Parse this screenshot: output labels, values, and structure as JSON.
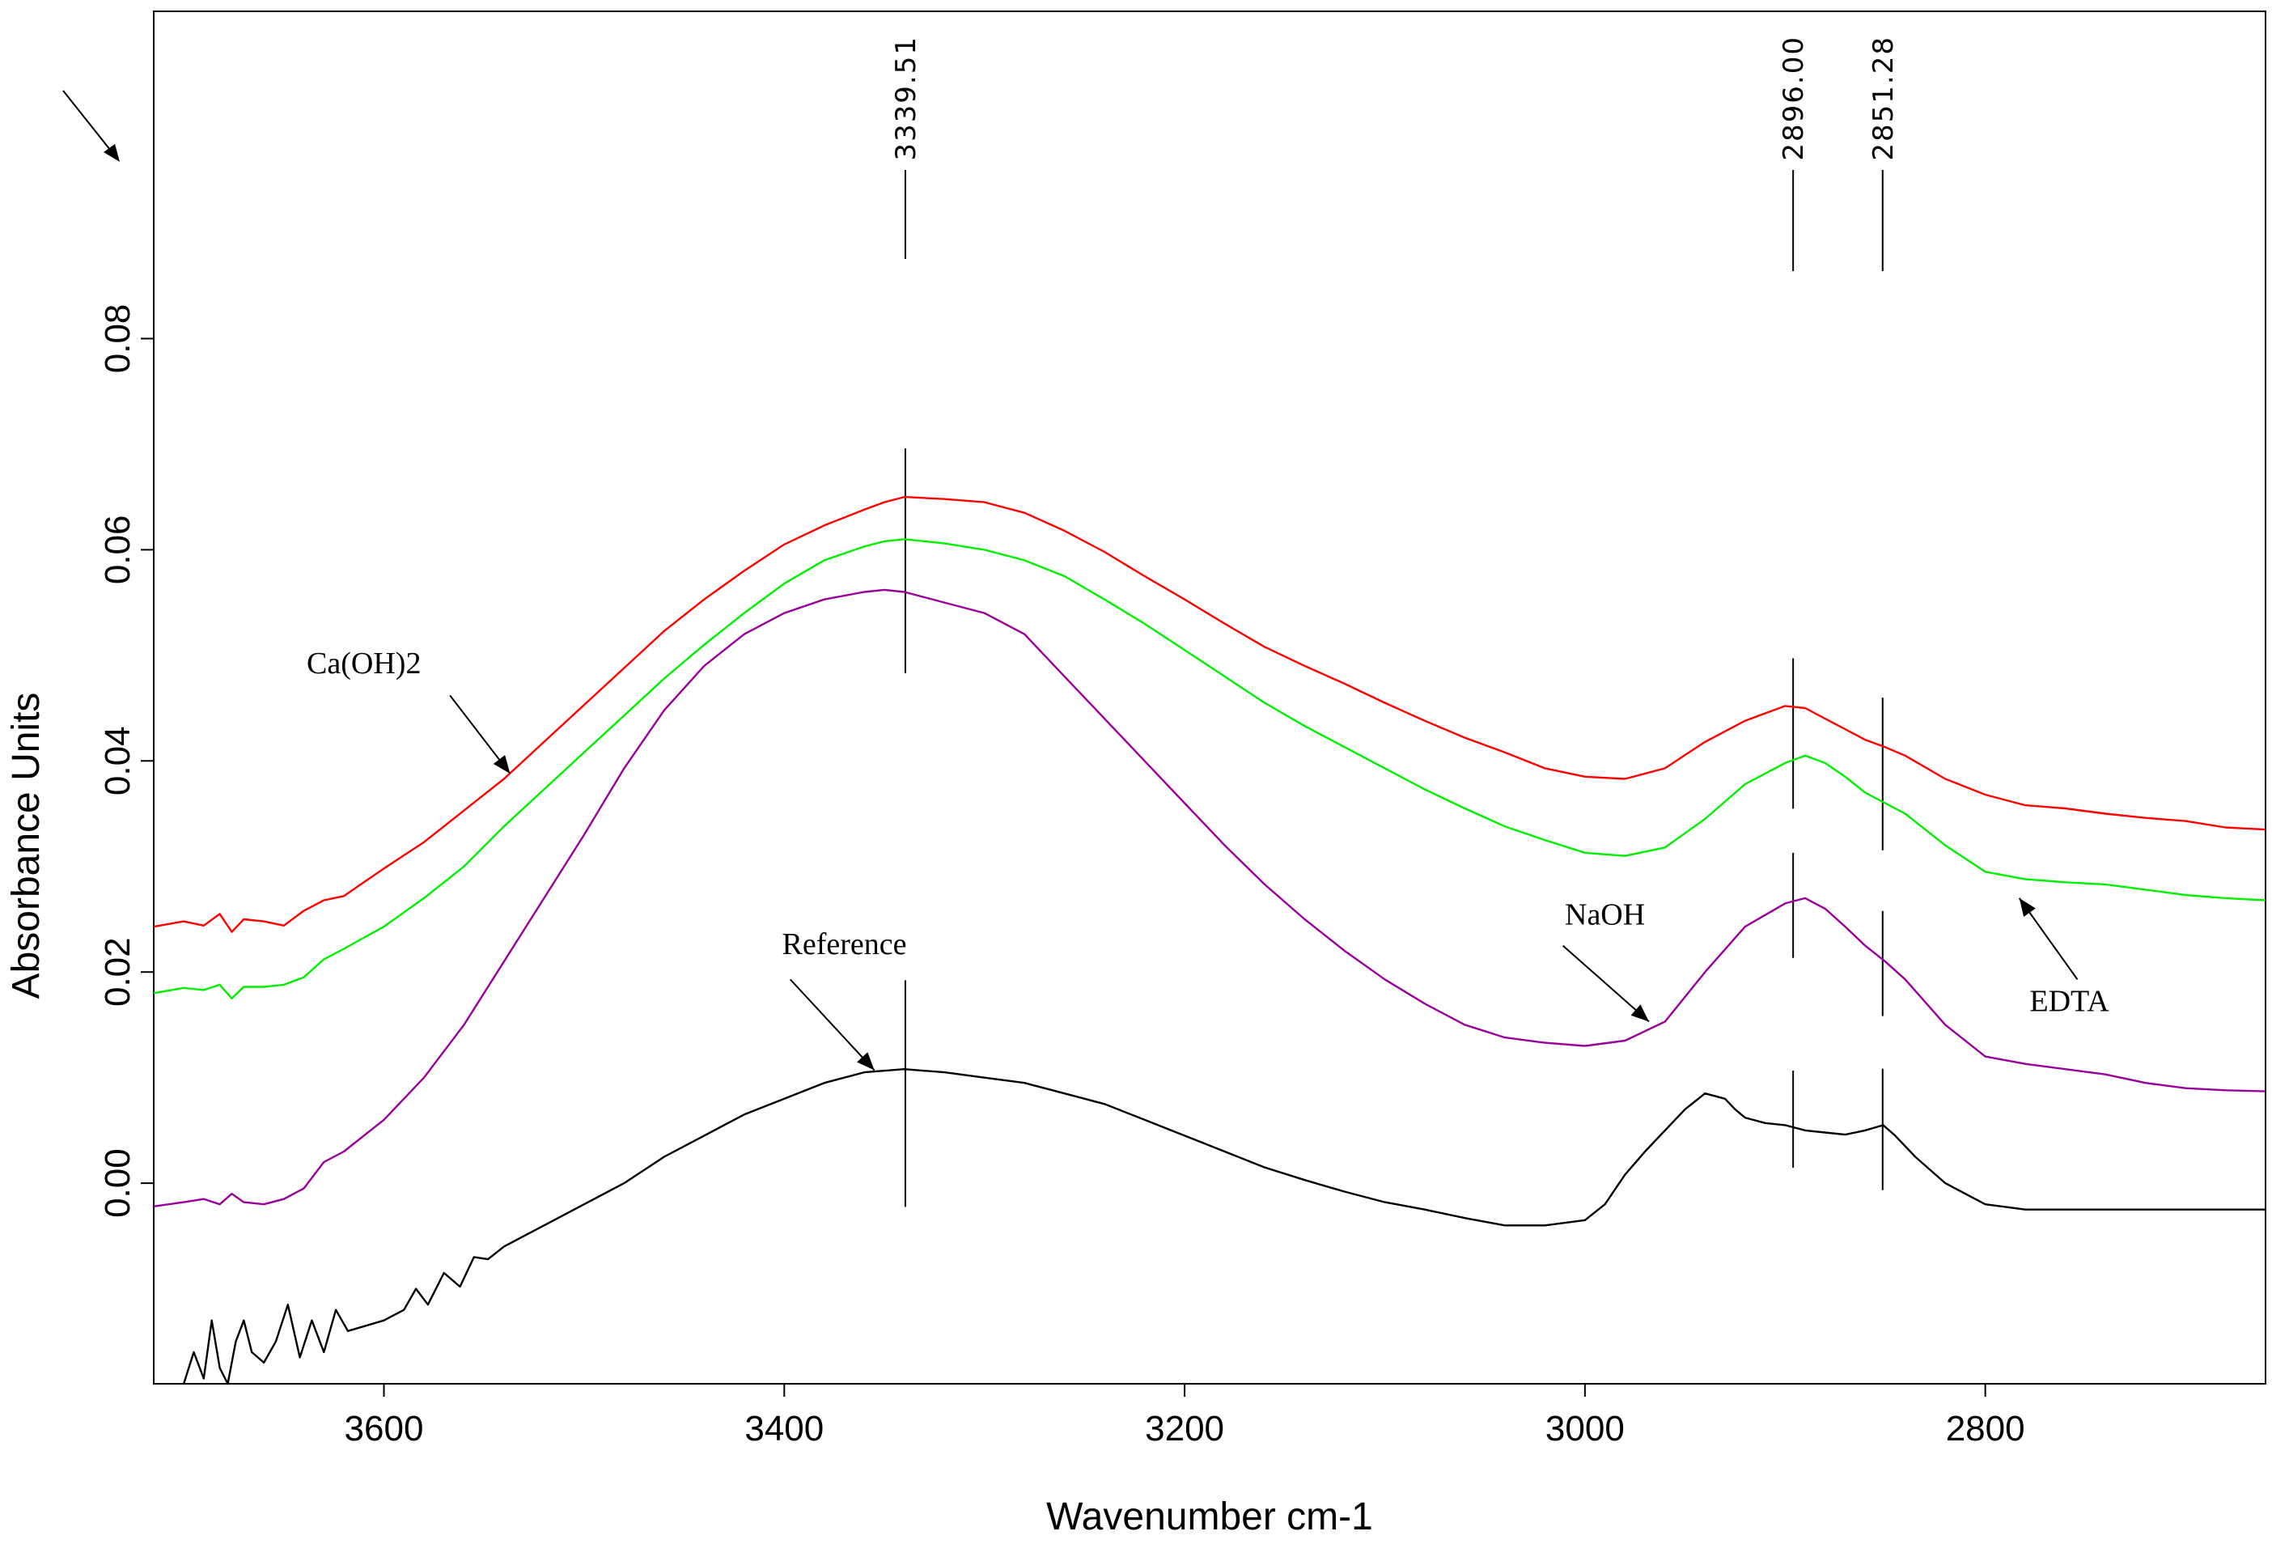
{
  "chart_data": {
    "type": "line",
    "title": "",
    "xlabel": "Wavenumber cm-1",
    "ylabel": "Absorbance Units",
    "xlim": [
      3715,
      2660
    ],
    "ylim": [
      -0.019,
      0.111
    ],
    "x_ticks": [
      3600,
      3400,
      3200,
      3000,
      2800
    ],
    "x_tick_labels": [
      "3600",
      "3400",
      "3200",
      "3000",
      "2800"
    ],
    "y_ticks": [
      0.0,
      0.02,
      0.04,
      0.06,
      0.08
    ],
    "y_tick_labels": [
      "0.00",
      "0.02",
      "0.04",
      "0.06",
      "0.08"
    ],
    "grid": false,
    "legend": "none",
    "peak_markers": [
      {
        "x": 3339.51,
        "label": "3339.51"
      },
      {
        "x": 2896.0,
        "label": "2896.00"
      },
      {
        "x": 2851.28,
        "label": "2851.28"
      }
    ],
    "series": [
      {
        "name": "Ca(OH)2",
        "color": "#ff0000",
        "x": [
          3715,
          3700,
          3690,
          3682,
          3676,
          3670,
          3660,
          3650,
          3640,
          3630,
          3620,
          3600,
          3580,
          3560,
          3540,
          3520,
          3500,
          3480,
          3460,
          3440,
          3420,
          3400,
          3380,
          3360,
          3350,
          3340,
          3320,
          3300,
          3280,
          3260,
          3240,
          3220,
          3200,
          3180,
          3160,
          3140,
          3120,
          3100,
          3080,
          3060,
          3040,
          3020,
          3000,
          2980,
          2960,
          2940,
          2920,
          2900,
          2890,
          2880,
          2870,
          2860,
          2850,
          2840,
          2820,
          2800,
          2780,
          2760,
          2740,
          2720,
          2700,
          2680,
          2660
        ],
        "y": [
          0.0243,
          0.0248,
          0.0244,
          0.0255,
          0.0238,
          0.025,
          0.0248,
          0.0244,
          0.0258,
          0.0268,
          0.0272,
          0.0298,
          0.0323,
          0.0353,
          0.0383,
          0.0418,
          0.0453,
          0.0488,
          0.0523,
          0.0553,
          0.058,
          0.0605,
          0.0623,
          0.0638,
          0.0645,
          0.065,
          0.0648,
          0.0645,
          0.0635,
          0.0618,
          0.0598,
          0.0575,
          0.0553,
          0.053,
          0.0508,
          0.049,
          0.0473,
          0.0455,
          0.0438,
          0.0422,
          0.0408,
          0.0393,
          0.0385,
          0.0383,
          0.0393,
          0.0418,
          0.0438,
          0.0452,
          0.045,
          0.044,
          0.043,
          0.042,
          0.0413,
          0.0405,
          0.0383,
          0.0368,
          0.0358,
          0.0355,
          0.035,
          0.0346,
          0.0343,
          0.0337,
          0.0335
        ]
      },
      {
        "name": "EDTA",
        "color": "#00ee00",
        "x": [
          3715,
          3700,
          3690,
          3682,
          3676,
          3670,
          3660,
          3650,
          3640,
          3630,
          3620,
          3600,
          3580,
          3560,
          3540,
          3520,
          3500,
          3480,
          3460,
          3440,
          3420,
          3400,
          3380,
          3360,
          3350,
          3340,
          3320,
          3300,
          3280,
          3260,
          3240,
          3220,
          3200,
          3180,
          3160,
          3140,
          3120,
          3100,
          3080,
          3060,
          3040,
          3020,
          3000,
          2980,
          2960,
          2940,
          2920,
          2900,
          2890,
          2880,
          2870,
          2860,
          2850,
          2840,
          2820,
          2800,
          2780,
          2760,
          2740,
          2720,
          2700,
          2680,
          2660
        ],
        "y": [
          0.018,
          0.0185,
          0.0183,
          0.0188,
          0.0175,
          0.0186,
          0.0186,
          0.0188,
          0.0195,
          0.0212,
          0.0222,
          0.0243,
          0.027,
          0.03,
          0.0338,
          0.0373,
          0.0408,
          0.0443,
          0.0478,
          0.051,
          0.054,
          0.0568,
          0.059,
          0.0603,
          0.0608,
          0.061,
          0.0606,
          0.06,
          0.059,
          0.0575,
          0.0553,
          0.053,
          0.0505,
          0.048,
          0.0455,
          0.0433,
          0.0413,
          0.0393,
          0.0373,
          0.0355,
          0.0338,
          0.0325,
          0.0313,
          0.031,
          0.0318,
          0.0345,
          0.0378,
          0.0398,
          0.0405,
          0.0398,
          0.0385,
          0.037,
          0.036,
          0.035,
          0.032,
          0.0295,
          0.0288,
          0.0285,
          0.0283,
          0.0278,
          0.0273,
          0.027,
          0.0268
        ]
      },
      {
        "name": "NaOH",
        "color": "#990099",
        "x": [
          3715,
          3700,
          3690,
          3682,
          3676,
          3670,
          3660,
          3650,
          3640,
          3630,
          3620,
          3600,
          3580,
          3560,
          3540,
          3520,
          3500,
          3480,
          3460,
          3440,
          3420,
          3400,
          3380,
          3360,
          3350,
          3340,
          3320,
          3300,
          3280,
          3260,
          3240,
          3220,
          3200,
          3180,
          3160,
          3140,
          3120,
          3100,
          3080,
          3060,
          3040,
          3020,
          3000,
          2980,
          2960,
          2940,
          2920,
          2900,
          2890,
          2880,
          2870,
          2860,
          2850,
          2840,
          2820,
          2800,
          2780,
          2760,
          2740,
          2720,
          2700,
          2680,
          2660
        ],
        "y": [
          -0.0022,
          -0.0018,
          -0.0015,
          -0.002,
          -0.001,
          -0.0018,
          -0.002,
          -0.0015,
          -0.0005,
          0.002,
          0.003,
          0.006,
          0.01,
          0.015,
          0.021,
          0.027,
          0.033,
          0.0393,
          0.0448,
          0.049,
          0.052,
          0.054,
          0.0553,
          0.056,
          0.0562,
          0.056,
          0.055,
          0.054,
          0.052,
          0.048,
          0.044,
          0.04,
          0.036,
          0.032,
          0.0283,
          0.025,
          0.022,
          0.0193,
          0.017,
          0.015,
          0.0138,
          0.0133,
          0.013,
          0.0135,
          0.0153,
          0.02,
          0.0243,
          0.0265,
          0.027,
          0.026,
          0.0243,
          0.0225,
          0.021,
          0.0193,
          0.015,
          0.012,
          0.0113,
          0.0108,
          0.0103,
          0.0095,
          0.009,
          0.0088,
          0.0087
        ]
      },
      {
        "name": "Reference",
        "color": "#000000",
        "x": [
          3700,
          3695,
          3690,
          3686,
          3682,
          3678,
          3674,
          3670,
          3666,
          3660,
          3654,
          3648,
          3642,
          3636,
          3630,
          3624,
          3618,
          3600,
          3590,
          3584,
          3578,
          3570,
          3562,
          3555,
          3548,
          3540,
          3520,
          3500,
          3480,
          3460,
          3440,
          3420,
          3400,
          3380,
          3360,
          3340,
          3320,
          3300,
          3280,
          3260,
          3240,
          3220,
          3200,
          3180,
          3160,
          3140,
          3120,
          3100,
          3080,
          3060,
          3040,
          3020,
          3000,
          2990,
          2980,
          2970,
          2960,
          2950,
          2940,
          2930,
          2925,
          2920,
          2910,
          2900,
          2890,
          2880,
          2870,
          2860,
          2851,
          2845,
          2835,
          2820,
          2800,
          2780,
          2760,
          2740,
          2720,
          2700,
          2680,
          2660
        ],
        "y": [
          -0.019,
          -0.016,
          -0.0185,
          -0.013,
          -0.0175,
          -0.019,
          -0.015,
          -0.013,
          -0.016,
          -0.017,
          -0.015,
          -0.0115,
          -0.0165,
          -0.013,
          -0.016,
          -0.012,
          -0.014,
          -0.013,
          -0.012,
          -0.01,
          -0.0115,
          -0.0085,
          -0.0098,
          -0.007,
          -0.0072,
          -0.006,
          -0.004,
          -0.002,
          0.0,
          0.0025,
          0.0045,
          0.0065,
          0.008,
          0.0095,
          0.0105,
          0.0108,
          0.0105,
          0.01,
          0.0095,
          0.0085,
          0.0075,
          0.006,
          0.0045,
          0.003,
          0.0015,
          0.0003,
          -0.0008,
          -0.0018,
          -0.0025,
          -0.0033,
          -0.004,
          -0.004,
          -0.0035,
          -0.002,
          0.0008,
          0.003,
          0.005,
          0.007,
          0.0085,
          0.008,
          0.007,
          0.0062,
          0.0057,
          0.0055,
          0.005,
          0.0048,
          0.0046,
          0.005,
          0.0055,
          0.0045,
          0.0025,
          0.0,
          -0.002,
          -0.0025,
          -0.0025,
          -0.0025,
          -0.0025,
          -0.0025,
          -0.0025,
          -0.0025
        ]
      }
    ],
    "annotations": [
      {
        "text": "Ca(OH)2",
        "series": "Ca(OH)2",
        "text_x": 3610,
        "text_y": 0.0483,
        "arrow_from": [
          3567,
          0.0462
        ],
        "arrow_to": [
          3537,
          0.0388
        ]
      },
      {
        "text": "Reference",
        "series": "Reference",
        "text_x": 3370,
        "text_y": 0.0217,
        "arrow_from": [
          3397,
          0.0193
        ],
        "arrow_to": [
          3355,
          0.0107
        ]
      },
      {
        "text": "NaOH",
        "series": "NaOH",
        "text_x": 2990,
        "text_y": 0.0245,
        "arrow_from": [
          3011,
          0.0225
        ],
        "arrow_to": [
          2968,
          0.0153
        ]
      },
      {
        "text": "EDTA",
        "series": "EDTA",
        "text_x": 2758,
        "text_y": 0.0163,
        "arrow_from": [
          2754,
          0.0193
        ],
        "arrow_to": [
          2783,
          0.027
        ]
      }
    ]
  }
}
